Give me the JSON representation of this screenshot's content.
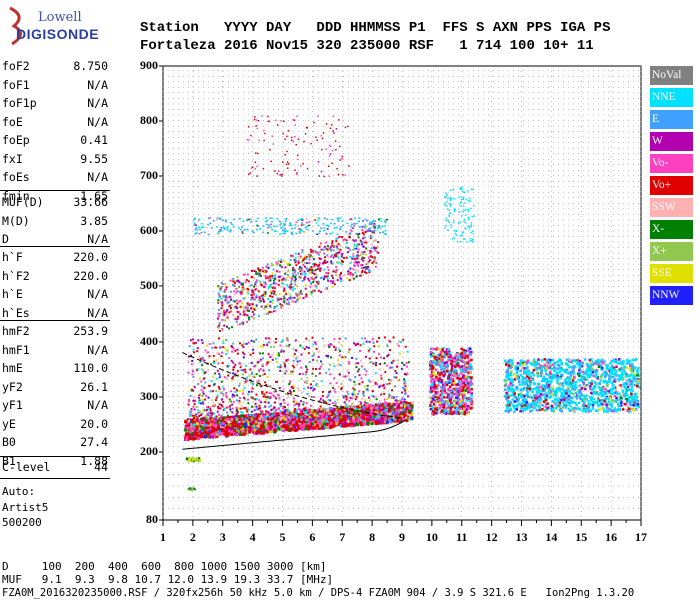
{
  "logo": {
    "line1": "Lowell",
    "line2": "DIGISONDE"
  },
  "header": {
    "line1": "Station   YYYY DAY   DDD HHMMSS P1  FFS S AXN PPS IGA PS",
    "line2": "Fortaleza 2016 Nov15 320 235000 RSF   1 714 100 10+ 11"
  },
  "params_group1": [
    {
      "name": "foF2",
      "value": "8.750"
    },
    {
      "name": "foF1",
      "value": "N/A"
    },
    {
      "name": "foF1p",
      "value": "N/A"
    },
    {
      "name": "foE",
      "value": "N/A"
    },
    {
      "name": "foEp",
      "value": "0.41"
    },
    {
      "name": "fxI",
      "value": "9.55"
    },
    {
      "name": "foEs",
      "value": "N/A"
    },
    {
      "name": "fmin",
      "value": "1.65"
    }
  ],
  "params_group2": [
    {
      "name": "MUF(D)",
      "value": "33.66"
    },
    {
      "name": "M(D)",
      "value": "3.85"
    },
    {
      "name": "D",
      "value": "N/A"
    }
  ],
  "params_group3": [
    {
      "name": "h`F",
      "value": "220.0"
    },
    {
      "name": "h`F2",
      "value": "220.0"
    },
    {
      "name": "h`E",
      "value": "N/A"
    },
    {
      "name": "h`Es",
      "value": "N/A"
    }
  ],
  "params_group4": [
    {
      "name": "hmF2",
      "value": "253.9"
    },
    {
      "name": "hmF1",
      "value": "N/A"
    },
    {
      "name": "hmE",
      "value": "110.0"
    },
    {
      "name": "yF2",
      "value": "26.1"
    },
    {
      "name": "yF1",
      "value": "N/A"
    },
    {
      "name": "yE",
      "value": "20.0"
    },
    {
      "name": "B0",
      "value": "27.4"
    },
    {
      "name": "B1",
      "value": "1.88"
    }
  ],
  "clevel": {
    "name": "C-level",
    "value": "44"
  },
  "auto": {
    "line1": "Auto:",
    "line2": "Artist5",
    "line3": "500200"
  },
  "legend": [
    {
      "label": "NoVal",
      "color": "#808080"
    },
    {
      "label": "NNE",
      "color": "#00e0ff"
    },
    {
      "label": "E",
      "color": "#40a0ff"
    },
    {
      "label": "W",
      "color": "#b000b0"
    },
    {
      "label": "Vo-",
      "color": "#ff40c0"
    },
    {
      "label": "Vo+",
      "color": "#e00000"
    },
    {
      "label": "SSW",
      "color": "#ffb0b0"
    },
    {
      "label": "X-",
      "color": "#008000"
    },
    {
      "label": "X+",
      "color": "#90c850"
    },
    {
      "label": "SSE",
      "color": "#e0e000"
    },
    {
      "label": "NNW",
      "color": "#2020ff"
    }
  ],
  "y_ticks": [
    "900",
    "800",
    "700",
    "600",
    "500",
    "400",
    "300",
    "200",
    "80"
  ],
  "x_ticks": [
    "1",
    "2",
    "3",
    "4",
    "5",
    "6",
    "7",
    "8",
    "9",
    "10",
    "11",
    "12",
    "13",
    "14",
    "15",
    "16",
    "17"
  ],
  "footer": {
    "d_line": "D     100  200  400  600  800 1000 1500 3000 [km]",
    "muf_line": "MUF   9.1  9.3  9.8 10.7 12.0 13.9 19.3 33.7 [MHz]",
    "info_line": "FZA0M_2016320235000.RSF / 320fx256h 50 kHz 5.0 km / DPS-4 FZA0M 904 / 3.9 S 321.6 E   Ion2Png 1.3.20"
  }
}
